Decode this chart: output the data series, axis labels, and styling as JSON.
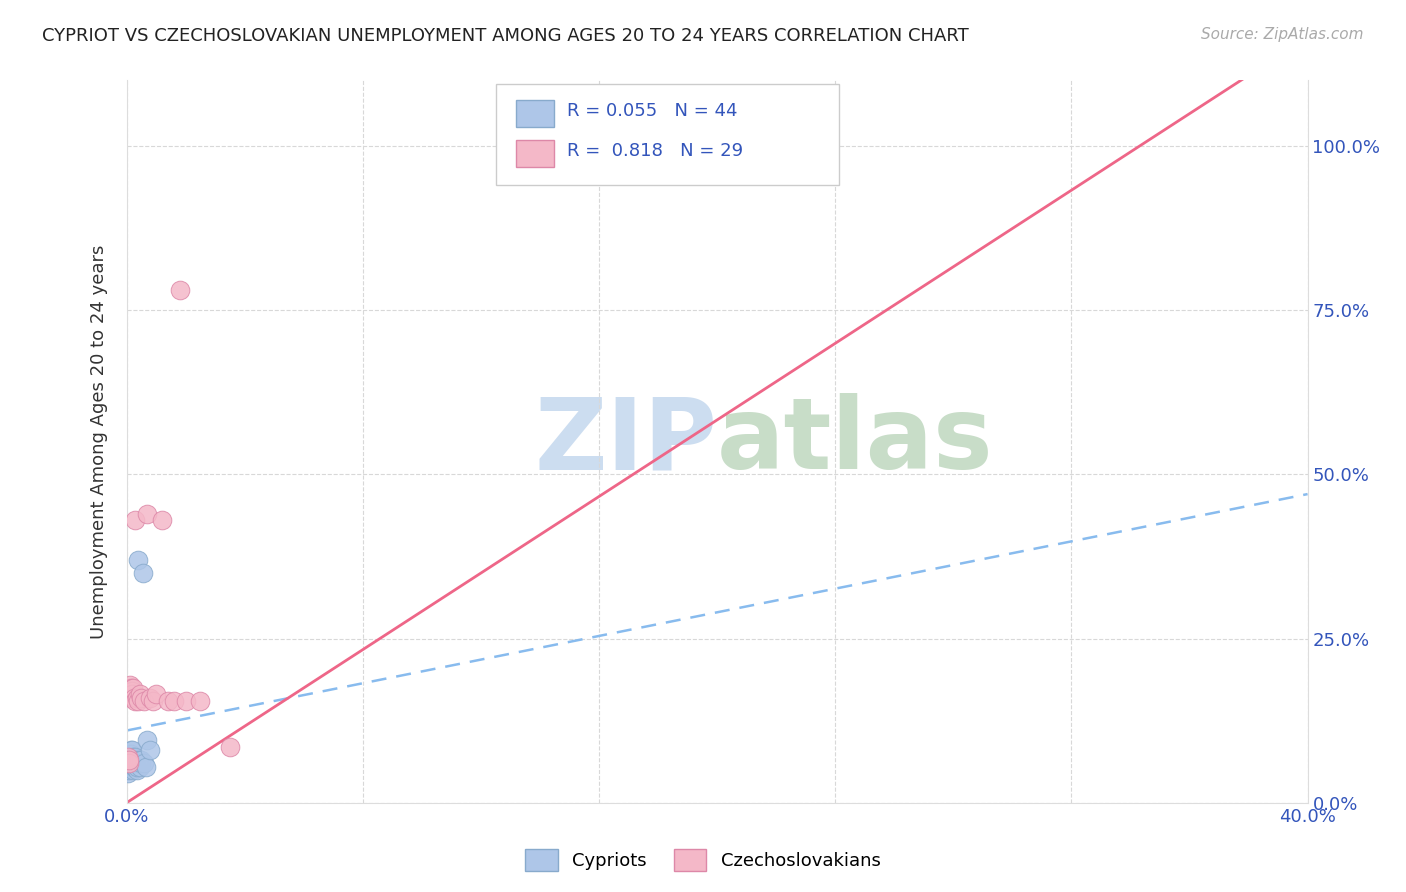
{
  "title": "CYPRIOT VS CZECHOSLOVAKIAN UNEMPLOYMENT AMONG AGES 20 TO 24 YEARS CORRELATION CHART",
  "source": "Source: ZipAtlas.com",
  "ylabel": "Unemployment Among Ages 20 to 24 years",
  "xlim": [
    0.0,
    0.4
  ],
  "ylim": [
    0.0,
    1.1
  ],
  "background_color": "#ffffff",
  "grid_color": "#d8d8d8",
  "cypriot_color": "#aec6e8",
  "cypriot_edge_color": "#88aacc",
  "czechoslovakian_color": "#f4b8c8",
  "czechoslovakian_edge_color": "#dd88a8",
  "cypriot_line_color": "#88bbee",
  "czechoslovakian_line_color": "#ee6688",
  "label1": "Cypriots",
  "label2": "Czechoslovakians",
  "cypriot_x": [
    0.0002,
    0.0003,
    0.0004,
    0.0005,
    0.0005,
    0.0006,
    0.0007,
    0.0008,
    0.0009,
    0.001,
    0.001,
    0.0011,
    0.0012,
    0.0013,
    0.0014,
    0.0015,
    0.0016,
    0.0017,
    0.0018,
    0.0019,
    0.002,
    0.0021,
    0.0022,
    0.0023,
    0.0024,
    0.0025,
    0.0026,
    0.0027,
    0.0028,
    0.003,
    0.0032,
    0.0034,
    0.0036,
    0.0038,
    0.004,
    0.0042,
    0.0045,
    0.0048,
    0.005,
    0.0055,
    0.006,
    0.0065,
    0.007,
    0.008
  ],
  "cypriot_y": [
    0.05,
    0.06,
    0.045,
    0.055,
    0.065,
    0.07,
    0.055,
    0.06,
    0.05,
    0.065,
    0.075,
    0.07,
    0.06,
    0.055,
    0.08,
    0.07,
    0.075,
    0.065,
    0.06,
    0.08,
    0.055,
    0.06,
    0.05,
    0.07,
    0.065,
    0.055,
    0.06,
    0.07,
    0.055,
    0.065,
    0.06,
    0.05,
    0.055,
    0.37,
    0.06,
    0.065,
    0.055,
    0.06,
    0.065,
    0.35,
    0.06,
    0.055,
    0.095,
    0.08
  ],
  "czechoslovakian_x": [
    0.0003,
    0.0005,
    0.0008,
    0.001,
    0.0012,
    0.0014,
    0.0016,
    0.0018,
    0.002,
    0.0022,
    0.0025,
    0.0028,
    0.003,
    0.0035,
    0.004,
    0.0045,
    0.005,
    0.006,
    0.007,
    0.008,
    0.009,
    0.01,
    0.012,
    0.014,
    0.016,
    0.018,
    0.02,
    0.025,
    0.035
  ],
  "czechoslovakian_y": [
    0.065,
    0.07,
    0.06,
    0.065,
    0.18,
    0.175,
    0.16,
    0.17,
    0.165,
    0.175,
    0.16,
    0.155,
    0.43,
    0.16,
    0.155,
    0.165,
    0.16,
    0.155,
    0.44,
    0.16,
    0.155,
    0.165,
    0.43,
    0.155,
    0.155,
    0.78,
    0.155,
    0.155,
    0.085
  ],
  "cypriot_line_x": [
    0.0,
    0.4
  ],
  "cypriot_line_y": [
    0.11,
    0.47
  ],
  "czechoslovakian_line_x": [
    0.0,
    0.35
  ],
  "czechoslovakian_line_y": [
    0.0,
    1.02
  ]
}
